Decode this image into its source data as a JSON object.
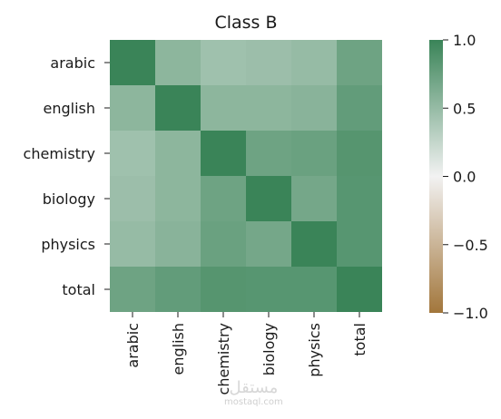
{
  "chart_data": {
    "type": "heatmap",
    "title": "Class B",
    "xlabel": "",
    "ylabel": "",
    "row_labels": [
      "arabic",
      "english",
      "chemistry",
      "biology",
      "physics",
      "total"
    ],
    "col_labels": [
      "arabic",
      "english",
      "chemistry",
      "biology",
      "physics",
      "total"
    ],
    "values": [
      [
        1.0,
        0.55,
        0.45,
        0.47,
        0.5,
        0.72
      ],
      [
        0.55,
        1.0,
        0.55,
        0.55,
        0.57,
        0.78
      ],
      [
        0.45,
        0.55,
        1.0,
        0.72,
        0.74,
        0.85
      ],
      [
        0.47,
        0.55,
        0.72,
        1.0,
        0.68,
        0.84
      ],
      [
        0.5,
        0.57,
        0.74,
        0.68,
        1.0,
        0.84
      ],
      [
        0.72,
        0.78,
        0.85,
        0.84,
        0.84,
        1.0
      ]
    ],
    "colorbar": {
      "range": [
        -1.0,
        1.0
      ],
      "ticks": [
        "1.0",
        "0.5",
        "0.0",
        "−0.5",
        "−1.0"
      ],
      "tick_values": [
        1.0,
        0.5,
        0.0,
        -0.5,
        -1.0
      ],
      "colors": {
        "neg": "#a2763b",
        "mid": "#f2f2f2",
        "pos": "#3a8458"
      }
    },
    "grid": false,
    "legend": "colorbar-right"
  },
  "watermark": {
    "script_text": "مستقل",
    "url_text": "mostaql.com"
  }
}
